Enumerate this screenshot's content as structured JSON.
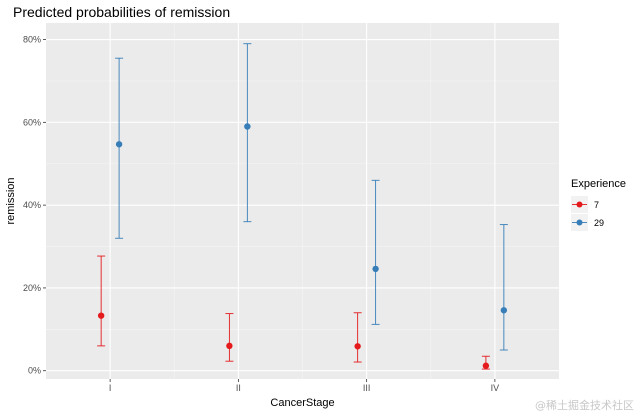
{
  "chart_data": {
    "type": "scatter",
    "title": "Predicted probabilities of remission",
    "xlabel": "CancerStage",
    "ylabel": "remission",
    "categories": [
      "I",
      "II",
      "III",
      "IV"
    ],
    "y_ticks": [
      "0%",
      "20%",
      "40%",
      "60%",
      "80%"
    ],
    "y_tick_values": [
      0,
      0.2,
      0.4,
      0.6,
      0.8
    ],
    "ylim": [
      -0.02,
      0.84
    ],
    "grid": true,
    "legend": {
      "title": "Experience",
      "position": "right"
    },
    "series": [
      {
        "name": "7",
        "color": "#e41a1c",
        "values": [
          0.133,
          0.06,
          0.059,
          0.012
        ],
        "lower": [
          0.06,
          0.023,
          0.021,
          0.004
        ],
        "upper": [
          0.277,
          0.138,
          0.14,
          0.035
        ]
      },
      {
        "name": "29",
        "color": "#377eb8",
        "values": [
          0.547,
          0.59,
          0.246,
          0.146
        ],
        "lower": [
          0.32,
          0.36,
          0.112,
          0.05
        ],
        "upper": [
          0.755,
          0.79,
          0.46,
          0.353
        ]
      }
    ]
  },
  "watermark": "@稀土掘金技术社区"
}
